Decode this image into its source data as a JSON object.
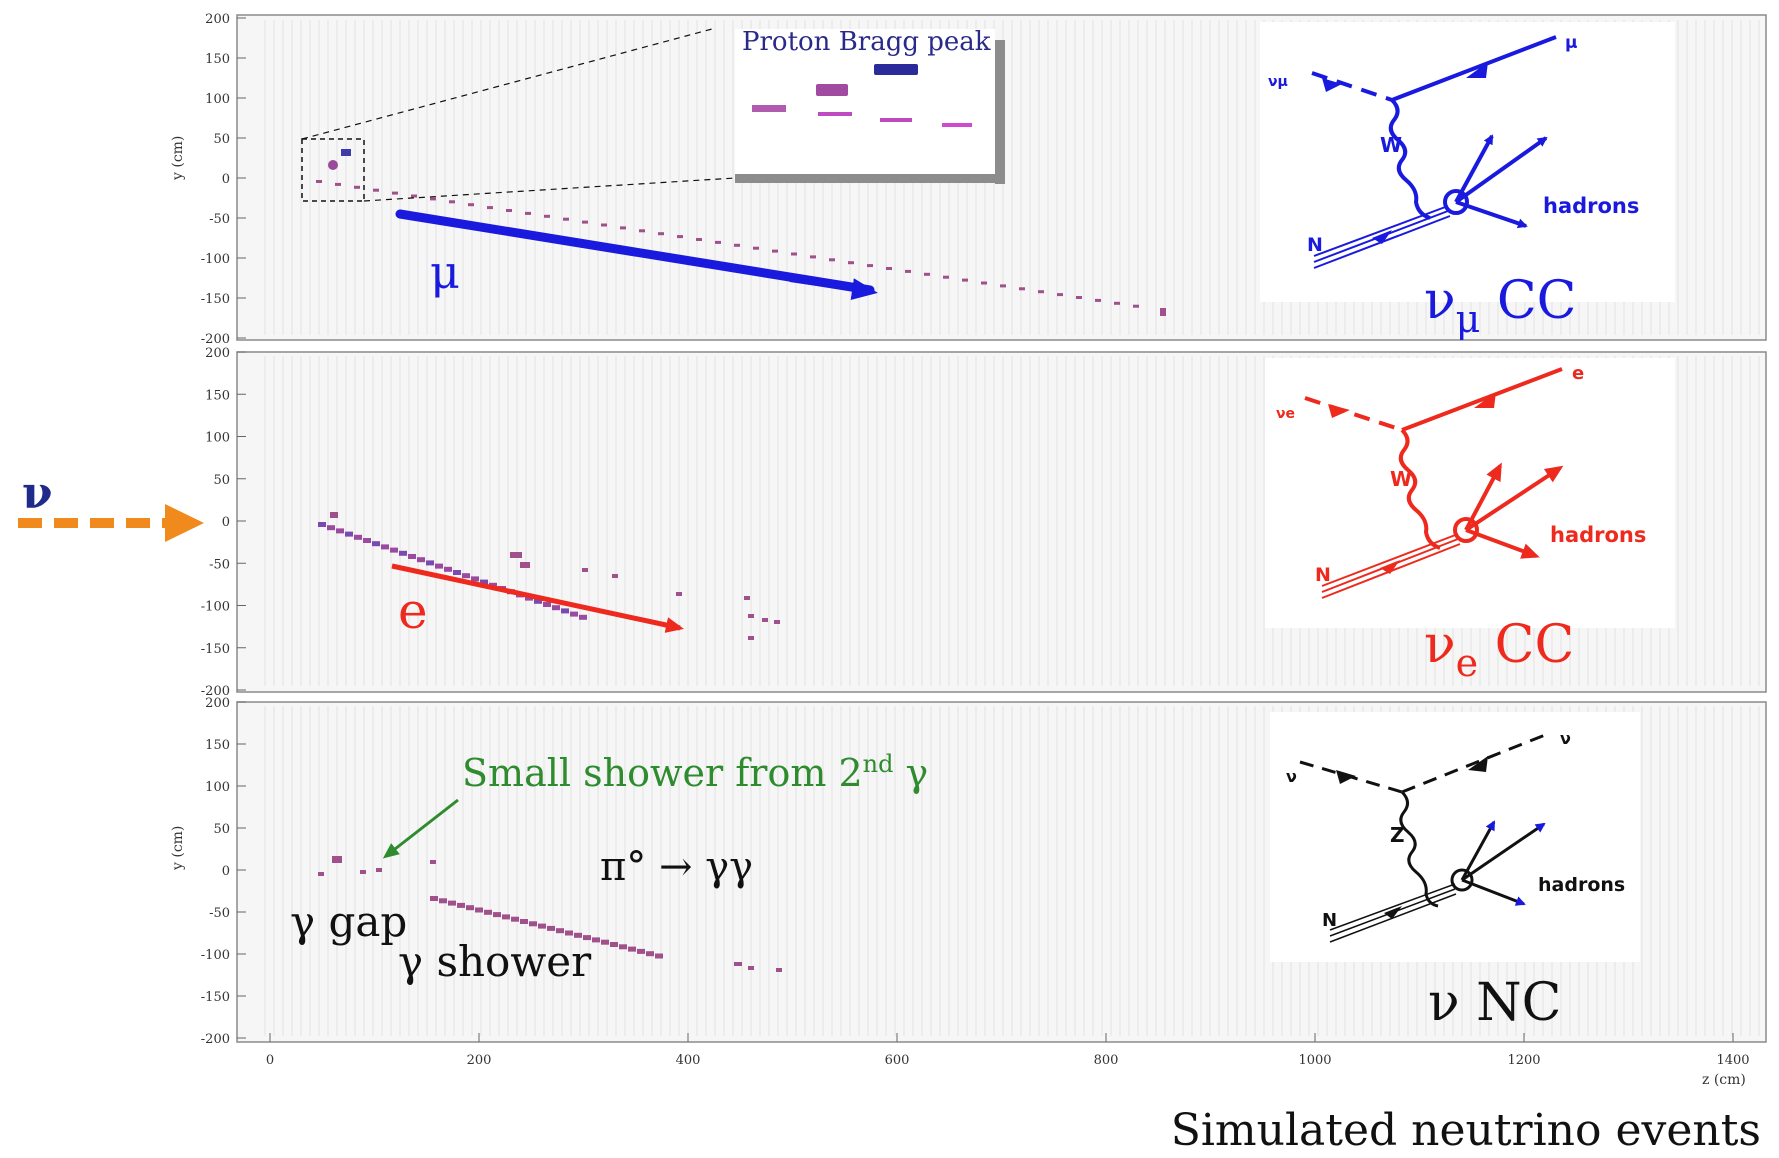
{
  "footer": {
    "title": "Simulated neutrino events"
  },
  "axes": {
    "y_title": "y (cm)",
    "x_title": "z (cm)",
    "y_ticks": [
      "200",
      "150",
      "100",
      "50",
      "0",
      "-50",
      "-100",
      "-150",
      "-200"
    ],
    "x_ticks": [
      "0",
      "200",
      "400",
      "600",
      "800",
      "1000",
      "1200",
      "1400"
    ]
  },
  "incoming": {
    "label": "ν",
    "color": "#f08a1c",
    "label_color": "#1f2a8a"
  },
  "panels": [
    {
      "id": "numu-cc",
      "color": "#1a1adf",
      "track_label": "μ",
      "event_label": "νμ CC",
      "event_label_main": "ν",
      "event_label_sub": "μ",
      "event_label_rest": " CC",
      "inset_title": "Proton Bragg peak",
      "diagram": {
        "in_label": "νμ",
        "out_label": "μ",
        "boson": "W",
        "nucleon": "N",
        "hadrons": "hadrons"
      }
    },
    {
      "id": "nue-cc",
      "color": "#ee2a1e",
      "track_label": "e",
      "event_label": "νe CC",
      "event_label_main": "ν",
      "event_label_sub": "e",
      "event_label_rest": " CC",
      "diagram": {
        "in_label": "νe",
        "out_label": "e",
        "boson": "W",
        "nucleon": "N",
        "hadrons": "hadrons"
      }
    },
    {
      "id": "nu-nc",
      "color": "#111111",
      "event_label": "ν NC",
      "annotation": "Small shower from 2nd γ",
      "annotation_main": "Small shower from 2",
      "annotation_sup": "nd",
      "annotation_end": " γ",
      "annotation_color": "#2e8b2e",
      "decay": "π° → γγ",
      "gap_label": "γ gap",
      "shower_label": "γ shower",
      "diagram": {
        "in_label": "ν",
        "out_label": "ν",
        "boson": "Z",
        "nucleon": "N",
        "hadrons": "hadrons"
      }
    }
  ]
}
